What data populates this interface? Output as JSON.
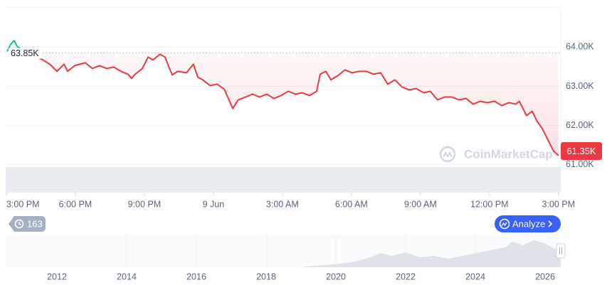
{
  "chart_data": {
    "type": "line",
    "xlim": [
      -0.03,
      24.1
    ],
    "xticks": [
      {
        "value": 0,
        "label": "3:00 PM"
      },
      {
        "value": 3,
        "label": "6:00 PM"
      },
      {
        "value": 6,
        "label": "9:00 PM"
      },
      {
        "value": 9,
        "label": "9 Jun"
      },
      {
        "value": 12,
        "label": "3:00 AM"
      },
      {
        "value": 15,
        "label": "6:00 AM"
      },
      {
        "value": 18,
        "label": "9:00 AM"
      },
      {
        "value": 21,
        "label": "12:00 PM"
      },
      {
        "value": 24,
        "label": "3:00 PM"
      }
    ],
    "ylim": [
      60290,
      65020
    ],
    "yticks": [
      {
        "value": 61000,
        "label": "61.00K"
      },
      {
        "value": 62000,
        "label": "62.00K"
      },
      {
        "value": 63000,
        "label": "63.00K"
      },
      {
        "value": 64000,
        "label": "64.00K"
      }
    ],
    "grid": true,
    "reference": {
      "value": 63850,
      "label": "63.85K"
    },
    "current": {
      "value": 61350,
      "label": "61.35K"
    },
    "series": [
      {
        "color": "#ea3943",
        "up_color": "#16c784",
        "x": [
          0.03,
          0.19,
          0.34,
          0.49,
          1.58,
          1.89,
          2.2,
          2.51,
          2.66,
          2.97,
          3.43,
          3.74,
          4.05,
          4.36,
          4.67,
          4.98,
          5.29,
          5.44,
          5.6,
          5.91,
          6.16,
          6.37,
          6.68,
          6.9,
          7.08,
          7.21,
          7.45,
          7.83,
          8.13,
          8.32,
          8.54,
          8.85,
          9.16,
          9.47,
          9.68,
          9.84,
          10.08,
          10.39,
          10.7,
          11.01,
          11.32,
          11.63,
          11.94,
          12.25,
          12.56,
          12.87,
          13.18,
          13.49,
          13.64,
          13.89,
          14.11,
          14.41,
          14.72,
          15.03,
          15.34,
          15.65,
          15.96,
          16.27,
          16.58,
          16.89,
          17.2,
          17.51,
          17.82,
          18.13,
          18.43,
          18.74,
          19.05,
          19.36,
          19.67,
          19.98,
          20.29,
          20.6,
          20.91,
          21.22,
          21.53,
          21.84,
          22.15,
          22.3,
          22.61,
          22.86,
          23.07,
          23.29,
          23.54,
          23.79,
          24.0
        ],
        "values": [
          63891,
          64073,
          64164,
          64000,
          63673,
          63564,
          63382,
          63564,
          63382,
          63527,
          63600,
          63455,
          63527,
          63455,
          63491,
          63382,
          63309,
          63200,
          63309,
          63455,
          63745,
          63673,
          63818,
          63745,
          63473,
          63291,
          63382,
          63345,
          63564,
          63236,
          63164,
          63018,
          63055,
          62927,
          62655,
          62436,
          62655,
          62727,
          62800,
          62727,
          62800,
          62691,
          62764,
          62873,
          62800,
          62836,
          62764,
          62873,
          63309,
          63382,
          63164,
          63273,
          63418,
          63345,
          63382,
          63382,
          63309,
          63345,
          63055,
          63164,
          62982,
          62909,
          62945,
          62836,
          62873,
          62655,
          62727,
          62727,
          62655,
          62691,
          62545,
          62618,
          62582,
          62618,
          62509,
          62582,
          62545,
          62618,
          62255,
          62364,
          62109,
          61927,
          61636,
          61345,
          61236
        ]
      }
    ]
  },
  "navigator": {
    "years": [
      "2012",
      "2014",
      "2016",
      "2018",
      "2020",
      "2022",
      "2024",
      "2026"
    ]
  },
  "ui": {
    "history": 163,
    "analyze": "Analyze",
    "watermark": "CoinMarketCap"
  }
}
